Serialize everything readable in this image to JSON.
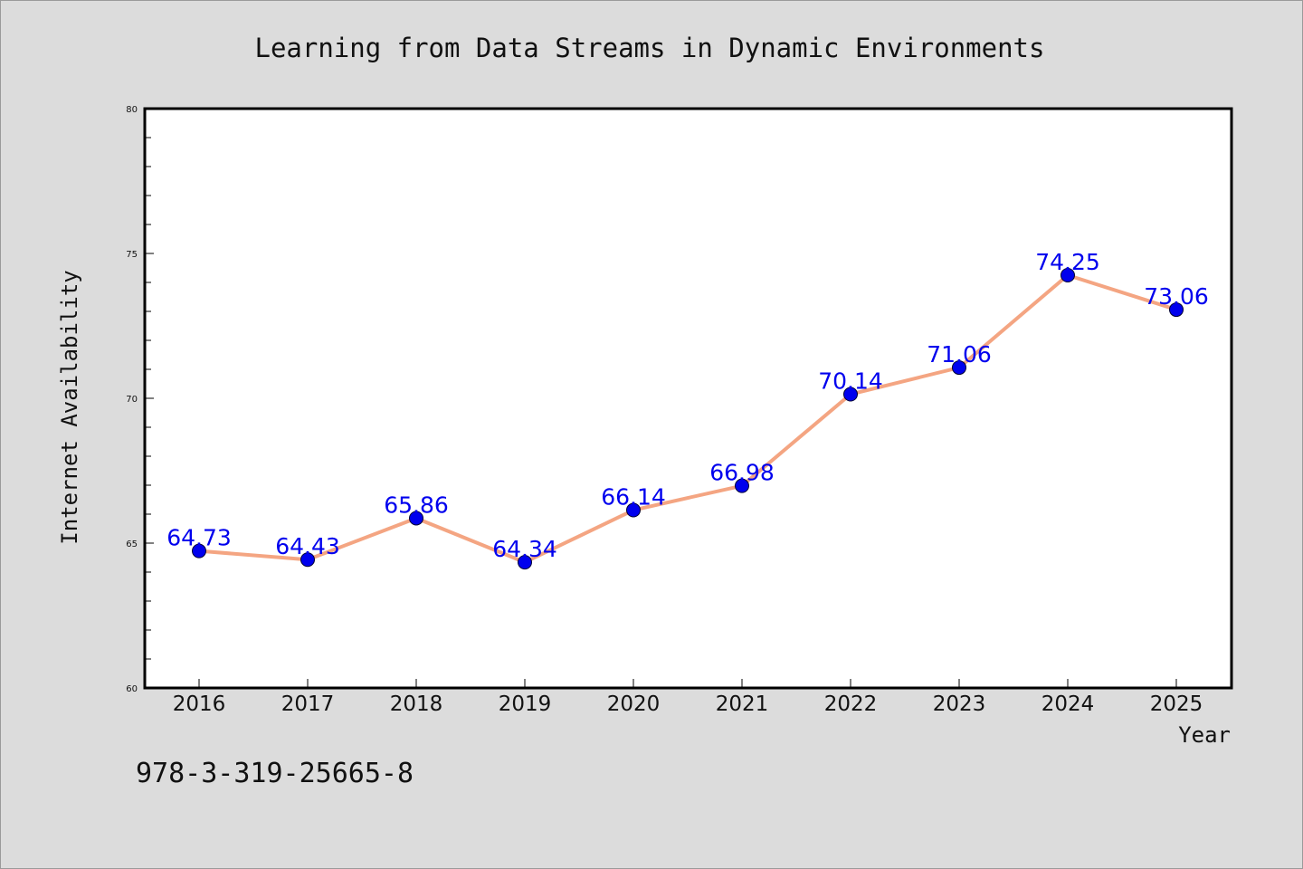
{
  "chart_data": {
    "type": "line",
    "title": "Learning from Data Streams in Dynamic Environments",
    "xlabel": "Year",
    "ylabel": "Internet Availability",
    "categories": [
      "2016",
      "2017",
      "2018",
      "2019",
      "2020",
      "2021",
      "2022",
      "2023",
      "2024",
      "2025"
    ],
    "series": [
      {
        "values": [
          64.73,
          64.43,
          65.86,
          64.34,
          66.14,
          66.98,
          70.14,
          71.06,
          74.25,
          73.06
        ],
        "data_labels": [
          "64.73",
          "64.43",
          "65.86",
          "64.34",
          "66.14",
          "66.98",
          "70.14",
          "71.06",
          "74.25",
          "73.06"
        ],
        "line_color": "#f4a582",
        "marker_color": "#0000ee"
      }
    ],
    "ylim": [
      60,
      80
    ],
    "yticks": [
      "60",
      "65",
      "70",
      "75",
      "80"
    ],
    "grid": false,
    "legend": "none"
  },
  "footer": {
    "isbn": "978-3-319-25665-8"
  },
  "colors": {
    "background": "#dcdcdc",
    "plot_background": "#ffffff",
    "line": "#f4a582",
    "marker": "#0000ee",
    "data_label": "#0000ee"
  }
}
